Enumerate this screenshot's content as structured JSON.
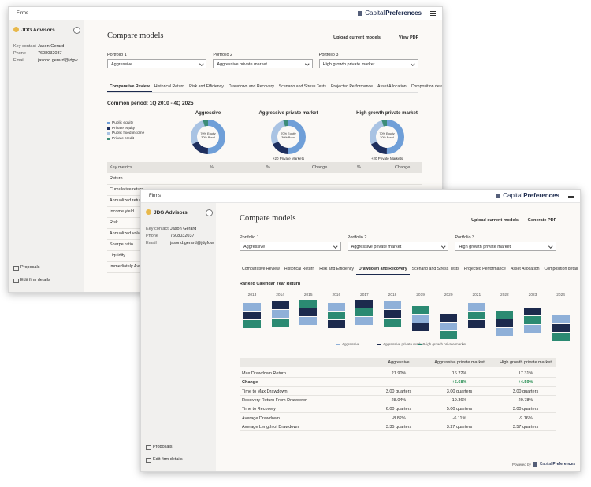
{
  "back_window": {
    "top_bar": {
      "section": "Firms",
      "logo_prefix": "Capital",
      "logo_suffix": "Preferences"
    },
    "sidebar": {
      "firm": "JDG Advisors",
      "fields": [
        {
          "label": "Key contact",
          "value": "Jason Gerard"
        },
        {
          "label": "Phone",
          "value": "7608032037"
        },
        {
          "label": "Email",
          "value": "jasond.gerard@jdgw..."
        }
      ],
      "links": [
        "Proposals",
        "Edit firm details"
      ]
    },
    "header": {
      "title": "Compare models",
      "actions": [
        "Upload current models",
        "View PDF"
      ]
    },
    "portfolios": [
      {
        "label": "Portfolio 1",
        "value": "Aggressive"
      },
      {
        "label": "Portfolio 2",
        "value": "Aggressive private market"
      },
      {
        "label": "Portfolio 3",
        "value": "High growth private market"
      }
    ],
    "tabs": [
      "Comparative Review",
      "Historical Return",
      "Risk and Efficiency",
      "Drawdown and Recovery",
      "Scenario and Stress Tests",
      "Projected Performance",
      "Asset Allocation",
      "Composition detail"
    ],
    "active_tab": 0,
    "period": "Common period: 1Q 2010 - 4Q 2025",
    "legend": [
      "Public equity",
      "Private equity",
      "Public fixed income",
      "Private credit"
    ],
    "donuts": [
      {
        "title": "Aggressive",
        "center": [
          "70% Equity",
          "30% Bond"
        ]
      },
      {
        "title": "Aggressive private market",
        "center": [
          "70% Equity",
          "30% Bond"
        ],
        "note": "+20 Private Markets"
      },
      {
        "title": "High growth private market",
        "center": [
          "70% Equity",
          "30% Bond"
        ],
        "note": "+20 Private Markets"
      }
    ],
    "table": {
      "header": [
        "Key metrics",
        "%",
        "%",
        "Change",
        "%",
        "Change"
      ],
      "rows": [
        "Return",
        "Cumulative return",
        "Annualized return",
        "Income yield",
        "Risk",
        "Annualized volatility",
        "Sharpe ratio",
        "Liquidity",
        "Immediately Available"
      ]
    }
  },
  "front_window": {
    "top_bar": {
      "section": "Firms",
      "logo_prefix": "Capital",
      "logo_suffix": "Preferences"
    },
    "sidebar": {
      "firm": "JDG Advisors",
      "fields": [
        {
          "label": "Key contact",
          "value": "Jason Gerard"
        },
        {
          "label": "Phone",
          "value": "7608032037"
        },
        {
          "label": "Email",
          "value": "jasond.gerard@jdgfow..."
        }
      ],
      "links": [
        "Proposals",
        "Edit firm details"
      ]
    },
    "header": {
      "title": "Compare models",
      "actions": [
        "Upload current models",
        "Generate PDF"
      ]
    },
    "portfolios": [
      {
        "label": "Portfolio 1",
        "value": "Aggressive"
      },
      {
        "label": "Portfolio 2",
        "value": "Aggressive private market"
      },
      {
        "label": "Portfolio 3",
        "value": "High growth private market"
      }
    ],
    "tabs": [
      "Comparative Review",
      "Historical Return",
      "Risk and Efficiency",
      "Drawdown and Recovery",
      "Scenario and Stress Tests",
      "Projected Performance",
      "Asset Allocation",
      "Composition detail"
    ],
    "active_tab": 3,
    "chart": {
      "title": "Ranked Calendar Year Return",
      "years": [
        "2013",
        "2014",
        "2015",
        "2016",
        "2017",
        "2018",
        "2019",
        "2020",
        "2021",
        "2022",
        "2023",
        "2024"
      ],
      "legend": [
        "Aggressive",
        "Aggressive private market",
        "High growth private market"
      ],
      "colors": [
        "#8fb0d8",
        "#1c2a4d",
        "#2b8a72"
      ]
    },
    "table": {
      "header": [
        "Aggressive",
        "Aggressive private market",
        "High growth private market"
      ],
      "rows": [
        {
          "label": "Max Drawdown Return",
          "cells": [
            "21.90%",
            "16.22%",
            "17.31%"
          ]
        },
        {
          "label": "Change",
          "cells": [
            "-",
            "+5.68%",
            "+4.59%"
          ]
        },
        {
          "label": "Time to Max Drawdown",
          "cells": [
            "3.00 quarters",
            "3.00 quarters",
            "3.00 quarters"
          ]
        },
        {
          "label": "Recovery Return From Drawdown",
          "cells": [
            "28.04%",
            "19.36%",
            "20.78%"
          ]
        },
        {
          "label": "Time to Recovery",
          "cells": [
            "6.00 quarters",
            "5.00 quarters",
            "3.00 quarters"
          ]
        },
        {
          "label": "Average Drawdown",
          "cells": [
            "-8.82%",
            "-6.11%",
            "-9.16%"
          ]
        },
        {
          "label": "Average Length of Drawdown",
          "cells": [
            "3.35 quarters",
            "3.27 quarters",
            "3.57 quarters"
          ]
        }
      ]
    },
    "footer": {
      "prefix": "Powered by",
      "logo_prefix": "Capital",
      "logo_suffix": "Preferences"
    }
  }
}
